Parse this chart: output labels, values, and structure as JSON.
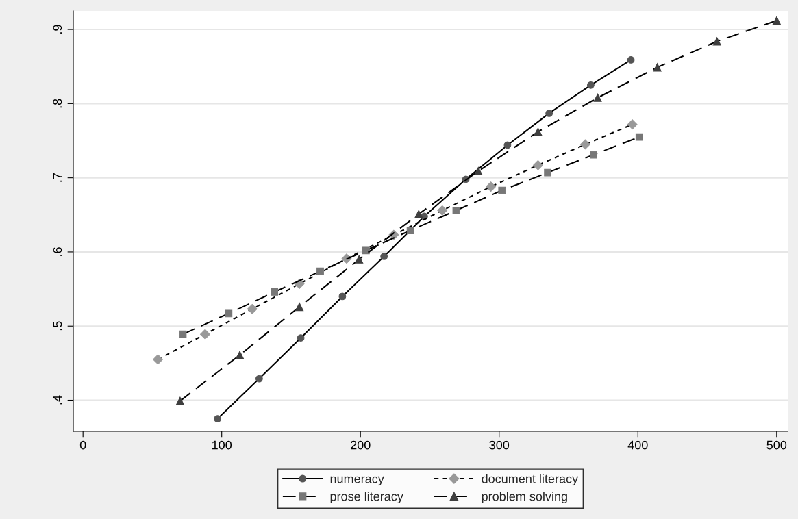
{
  "chart_data": {
    "type": "line",
    "series": [
      {
        "name": "numeracy",
        "color": "#555555",
        "marker": "circle",
        "line_style": "solid",
        "x": [
          97,
          127,
          157,
          187,
          217,
          246,
          276,
          306,
          336,
          366,
          395
        ],
        "values": [
          0.375,
          0.429,
          0.484,
          0.54,
          0.594,
          0.648,
          0.698,
          0.744,
          0.787,
          0.825,
          0.859
        ]
      },
      {
        "name": "document literacy",
        "color": "#999999",
        "marker": "diamond",
        "line_style": "dotted",
        "x": [
          54,
          88,
          122,
          156,
          190,
          224,
          259,
          294,
          328,
          362,
          396
        ],
        "values": [
          0.455,
          0.489,
          0.523,
          0.557,
          0.591,
          0.623,
          0.656,
          0.688,
          0.717,
          0.745,
          0.772
        ]
      },
      {
        "name": "prose literacy",
        "color": "#777777",
        "marker": "square",
        "line_style": "dashed",
        "x": [
          72,
          105,
          138,
          171,
          204,
          236,
          269,
          302,
          335,
          368,
          401
        ],
        "values": [
          0.489,
          0.517,
          0.546,
          0.574,
          0.602,
          0.629,
          0.656,
          0.683,
          0.707,
          0.731,
          0.755
        ]
      },
      {
        "name": "problem solving",
        "color": "#3f3f3f",
        "marker": "triangle",
        "line_style": "dashed",
        "x": [
          70,
          113,
          156,
          199,
          242,
          285,
          328,
          371,
          414,
          457,
          500
        ],
        "values": [
          0.399,
          0.461,
          0.526,
          0.59,
          0.651,
          0.709,
          0.762,
          0.808,
          0.849,
          0.884,
          0.912
        ]
      }
    ],
    "xlim": [
      -7,
      508
    ],
    "xticks": [
      0,
      100,
      200,
      300,
      400,
      500
    ],
    "ylim": [
      0.358,
      0.925
    ],
    "yticks": [
      {
        "value": 0.4,
        "label": ".4"
      },
      {
        "value": 0.5,
        "label": ".5"
      },
      {
        "value": 0.6,
        "label": ".6"
      },
      {
        "value": 0.7,
        "label": ".7"
      },
      {
        "value": 0.8,
        "label": ".8"
      },
      {
        "value": 0.9,
        "label": ".9"
      }
    ],
    "grid": "y",
    "legend": "bottom"
  }
}
